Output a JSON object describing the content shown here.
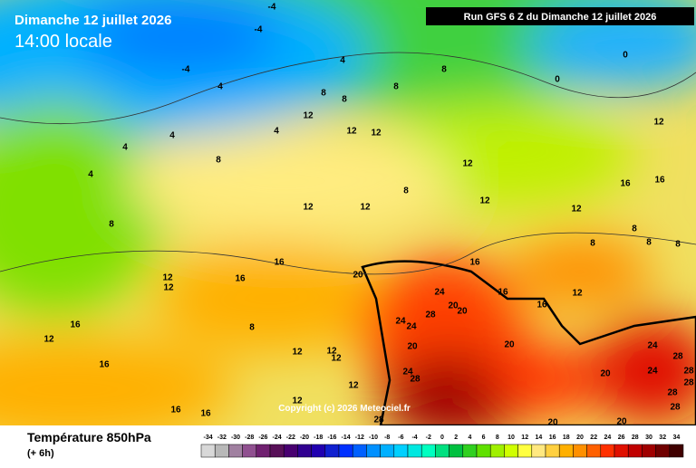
{
  "header": {
    "title": "Dimanche 12 juillet 2026",
    "time": "14:00 locale",
    "run": "Run GFS 6 Z du Dimanche 12 juillet 2026"
  },
  "map": {
    "copyright": "Copyright (c) 2026 Meteociel.fr",
    "contour_labels": [
      -4,
      -4,
      -4,
      4,
      4,
      8,
      8,
      8,
      8,
      0,
      0,
      4,
      4,
      4,
      4,
      12,
      12,
      12,
      8,
      12,
      12,
      8,
      12,
      12,
      12,
      16,
      16,
      8,
      12,
      8,
      8,
      8,
      8,
      16,
      16,
      20,
      12,
      12,
      16,
      24,
      16,
      12,
      20,
      20,
      28,
      16,
      24,
      24,
      16,
      8,
      12,
      20,
      20,
      24,
      28,
      12,
      12,
      12,
      16,
      24,
      28,
      20,
      24,
      28,
      28,
      28,
      28,
      12,
      16,
      16,
      12,
      28,
      20,
      20
    ]
  },
  "legend": {
    "title": "Température 850hPa",
    "subtitle": "(+ 6h)",
    "scale": [
      -34,
      -32,
      -30,
      -28,
      -26,
      -24,
      -22,
      -20,
      -18,
      -16,
      -14,
      -12,
      -10,
      -8,
      -6,
      -4,
      -2,
      0,
      2,
      4,
      6,
      8,
      10,
      12,
      14,
      16,
      18,
      20,
      22,
      24,
      26,
      28,
      30,
      32,
      34
    ],
    "colors": [
      "#d8d8d8",
      "#b8b8b8",
      "#a080a0",
      "#905090",
      "#702070",
      "#581058",
      "#480070",
      "#300090",
      "#2000b0",
      "#1020d0",
      "#0030ff",
      "#0060ff",
      "#0090ff",
      "#00b0ff",
      "#00d0ff",
      "#00e8e0",
      "#00ffc0",
      "#00e080",
      "#00c040",
      "#30d020",
      "#60e000",
      "#a0f000",
      "#d0ff00",
      "#ffff40",
      "#ffe880",
      "#ffd040",
      "#ffb000",
      "#ff9000",
      "#ff6000",
      "#ff3000",
      "#e01000",
      "#c00000",
      "#a00000",
      "#700000",
      "#400000"
    ]
  }
}
